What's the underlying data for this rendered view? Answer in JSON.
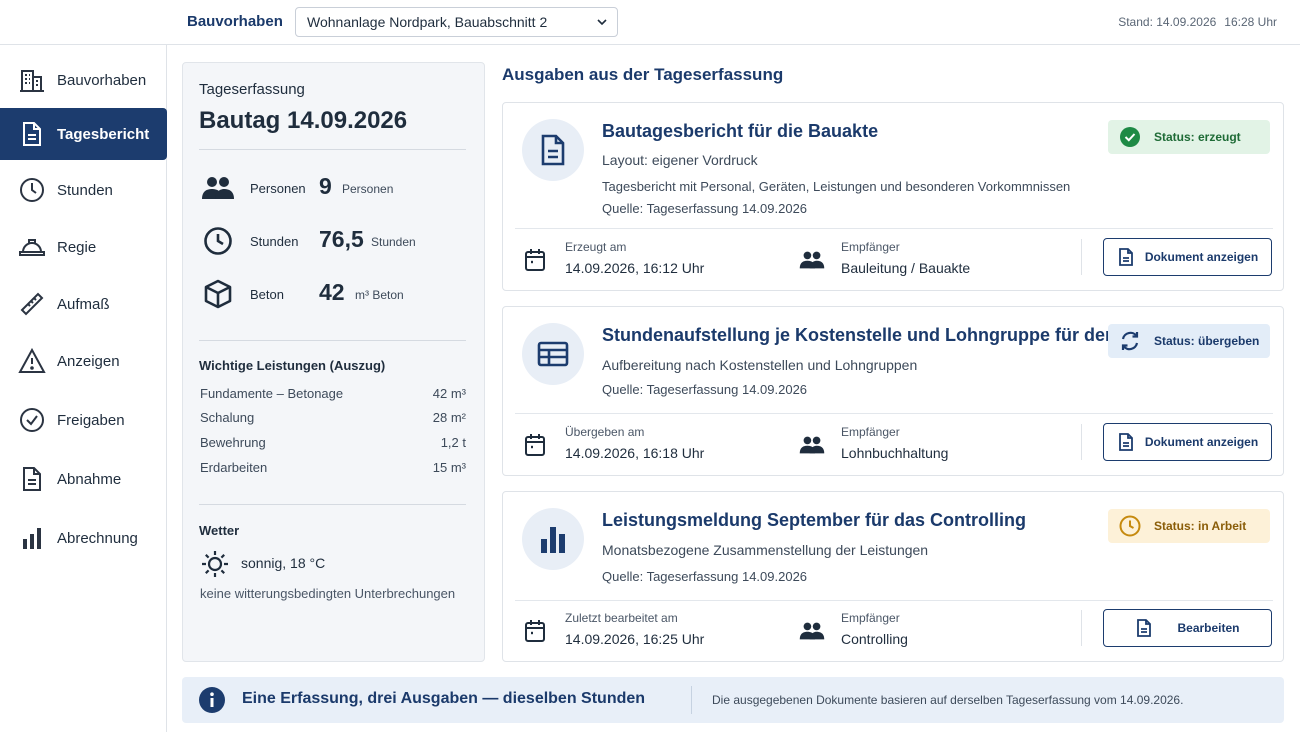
{
  "header": {
    "label": "Bauvorhaben",
    "project": "Wohnanlage Nordpark, Bauabschnitt 2",
    "stand_label": "Stand: 14.09.2026",
    "stand_time": "16:28 Uhr"
  },
  "sidebar": {
    "items": [
      {
        "label": "Bauvorhaben",
        "icon": "building-icon"
      },
      {
        "label": "Tagesbericht",
        "icon": "document-icon",
        "active": true
      },
      {
        "label": "Stunden",
        "icon": "clock-icon"
      },
      {
        "label": "Regie",
        "icon": "hardhat-icon"
      },
      {
        "label": "Aufmaß",
        "icon": "ruler-icon"
      },
      {
        "label": "Anzeigen",
        "icon": "warning-icon"
      },
      {
        "label": "Freigaben",
        "icon": "check-circle-icon"
      },
      {
        "label": "Abnahme",
        "icon": "document-icon"
      },
      {
        "label": "Abrechnung",
        "icon": "bar-chart-icon"
      }
    ]
  },
  "day": {
    "kicker": "Tageserfassung",
    "title": "Bautag 14.09.2026",
    "metrics": [
      {
        "label": "Personen",
        "value": "9",
        "unit": "Personen",
        "icon": "people-icon"
      },
      {
        "label": "Stunden",
        "value": "76,5",
        "unit": "Stunden",
        "icon": "clock-icon"
      },
      {
        "label": "Beton",
        "value": "42",
        "unit": "m³ Beton",
        "icon": "cube-icon"
      }
    ],
    "services_title": "Wichtige Leistungen (Auszug)",
    "services": [
      {
        "name": "Fundamente – Betonage",
        "value": "42 m³"
      },
      {
        "name": "Schalung",
        "value": "28 m²"
      },
      {
        "name": "Bewehrung",
        "value": "1,2 t"
      },
      {
        "name": "Erdarbeiten",
        "value": "15 m³"
      }
    ],
    "weather_title": "Wetter",
    "weather": "sonnig, 18 °C",
    "weather_note": "keine witterungsbedingten Unterbrechungen"
  },
  "outputs": {
    "title": "Ausgaben aus der Tageserfassung",
    "cards": [
      {
        "title": "Bautagesbericht für die Bauakte",
        "sub": "Layout: eigener Vordruck",
        "desc": "Tagesbericht mit Personal, Geräten, Leistungen und besonderen Vorkommnissen",
        "source": "Quelle: Tageserfassung 14.09.2026",
        "status": "Status: erzeugt",
        "date_label": "Erzeugt am",
        "date": "14.09.2026, 16:12 Uhr",
        "recipient_label": "Empfänger",
        "recipient": "Bauleitung / Bauakte",
        "button": "Dokument anzeigen",
        "icon": "document-icon"
      },
      {
        "title": "Stundenaufstellung je Kostenstelle und Lohngruppe für den Baulohn",
        "sub": "Aufbereitung nach Kostenstellen und Lohngruppen",
        "source": "Quelle: Tageserfassung 14.09.2026",
        "status": "Status: übergeben",
        "date_label": "Übergeben am",
        "date": "14.09.2026, 16:18 Uhr",
        "recipient_label": "Empfänger",
        "recipient": "Lohnbuchhaltung",
        "button": "Dokument anzeigen",
        "icon": "table-icon"
      },
      {
        "title": "Leistungsmeldung September für das Controlling",
        "sub": "Monatsbezogene Zusammenstellung der Leistungen",
        "source": "Quelle: Tageserfassung 14.09.2026",
        "status": "Status: in Arbeit",
        "date_label": "Zuletzt bearbeitet am",
        "date": "14.09.2026, 16:25 Uhr",
        "recipient_label": "Empfänger",
        "recipient": "Controlling",
        "button": "Bearbeiten",
        "icon": "bar-chart-icon"
      }
    ]
  },
  "info": {
    "title": "Eine Erfassung, drei Ausgaben — dieselben Stunden",
    "note": "Die ausgegebenen Dokumente basieren auf derselben Tageserfassung vom 14.09.2026."
  },
  "colors": {
    "primary": "#1c3c6e",
    "success": "#1e8a45",
    "warning": "#c68a0f"
  }
}
